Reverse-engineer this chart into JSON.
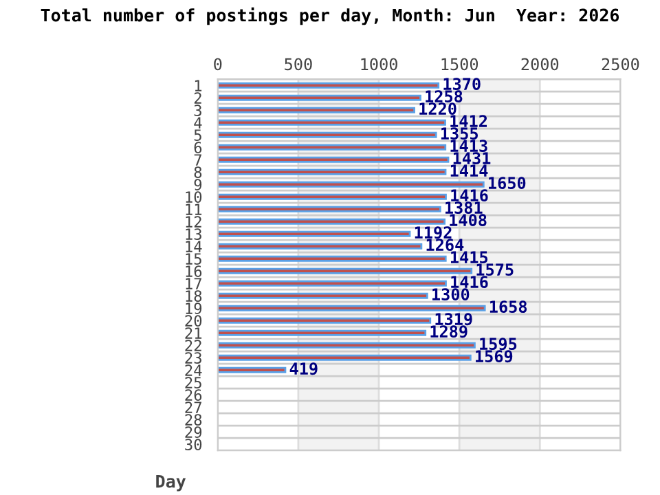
{
  "chart_data": {
    "type": "bar",
    "orientation": "horizontal",
    "title": "Total number of postings per day, Month: Jun  Year: 2026",
    "ylabel": "Day",
    "categories": [
      "1",
      "2",
      "3",
      "4",
      "5",
      "6",
      "7",
      "8",
      "9",
      "10",
      "11",
      "12",
      "13",
      "14",
      "15",
      "16",
      "17",
      "18",
      "19",
      "20",
      "21",
      "22",
      "23",
      "24",
      "25",
      "26",
      "27",
      "28",
      "29",
      "30"
    ],
    "series": [
      {
        "color": "#c0504d",
        "values": [
          1370,
          1258,
          1220,
          1412,
          1355,
          1413,
          1431,
          1414,
          1650,
          1416,
          1381,
          1408,
          1192,
          1264,
          1415,
          1575,
          1416,
          1300,
          1658,
          1319,
          1289,
          1595,
          1569,
          419,
          null,
          null,
          null,
          null,
          null,
          null
        ]
      }
    ],
    "xlim": [
      0,
      2500
    ],
    "xticks": [
      0,
      500,
      1000,
      1500,
      2000,
      2500
    ],
    "bands": [
      {
        "axis": "x",
        "from": 500,
        "to": 1000,
        "color": "#f2f2f2"
      },
      {
        "axis": "x",
        "from": 1500,
        "to": 2000,
        "color": "#f2f2f2"
      }
    ],
    "grid": true,
    "data_labels": true
  }
}
